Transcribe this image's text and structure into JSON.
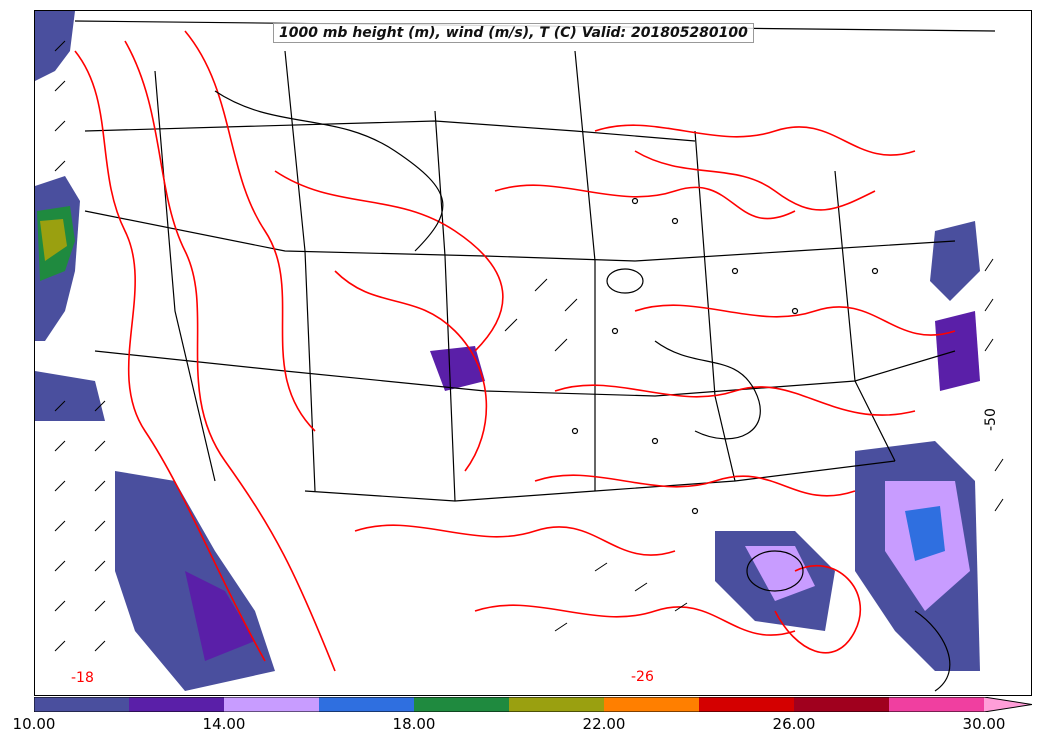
{
  "title": "1000 mb height (m), wind (m/s), T (C) Valid: 201805280100",
  "colorbar": {
    "bins": [
      {
        "from": 10,
        "to": 12,
        "color": "#4a4f9e"
      },
      {
        "from": 12,
        "to": 14,
        "color": "#5a1fa8"
      },
      {
        "from": 14,
        "to": 16,
        "color": "#c89cff"
      },
      {
        "from": 16,
        "to": 18,
        "color": "#2f6fe0"
      },
      {
        "from": 18,
        "to": 20,
        "color": "#1f8a3f"
      },
      {
        "from": 20,
        "to": 22,
        "color": "#9aa010"
      },
      {
        "from": 22,
        "to": 24,
        "color": "#ff7f00"
      },
      {
        "from": 24,
        "to": 26,
        "color": "#d40000"
      },
      {
        "from": 26,
        "to": 28,
        "color": "#a0001e"
      },
      {
        "from": 28,
        "to": 30,
        "color": "#f03fa0"
      }
    ],
    "extend_color": "#ff9ed8",
    "tick_labels": [
      "10.00",
      "14.00",
      "18.00",
      "22.00",
      "26.00",
      "30.00"
    ]
  },
  "contour_labels": [
    "-18",
    "-26",
    "-50"
  ],
  "colors": {
    "height_contour": "#000000",
    "temperature_contour": "#ff0000",
    "boundaries": "#000000"
  }
}
